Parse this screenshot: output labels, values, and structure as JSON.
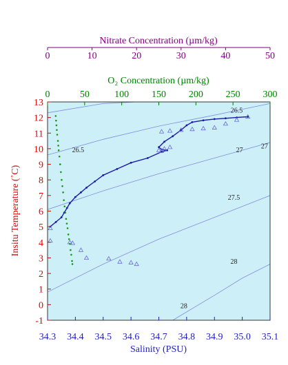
{
  "chart_data": {
    "type": "scatter",
    "axes": {
      "x_bottom": {
        "label": "Salinity (PSU)",
        "range": [
          34.3,
          35.1
        ],
        "ticks": [
          "34.3",
          "34.4",
          "34.5",
          "34.6",
          "34.7",
          "34.8",
          "34.9",
          "35.0",
          "35.1"
        ],
        "color": "#1f1fbf"
      },
      "y_left": {
        "label": "Insitu Temperature (˚C)",
        "range": [
          -1,
          13
        ],
        "ticks": [
          "-1",
          "0",
          "1",
          "2",
          "3",
          "4",
          "5",
          "6",
          "7",
          "8",
          "9",
          "10",
          "11",
          "12",
          "13"
        ],
        "color": "#e00000"
      },
      "x_top_o2": {
        "label": "O₂ Concentration (µm/kg)",
        "range": [
          0,
          300
        ],
        "ticks": [
          "0",
          "50",
          "100",
          "150",
          "200",
          "250",
          "300"
        ],
        "color": "#008000"
      },
      "x_top_nitrate": {
        "label": "Nitrate Concentration (µm/kg)",
        "range": [
          0,
          50
        ],
        "ticks": [
          "0",
          "10",
          "20",
          "30",
          "40",
          "50"
        ],
        "color": "#800080"
      }
    },
    "isopycnals": [
      {
        "label": "26.5",
        "points": [
          [
            34.3,
            9.6
          ],
          [
            34.5,
            10.6
          ],
          [
            34.7,
            11.45
          ],
          [
            34.9,
            12.15
          ],
          [
            35.1,
            12.9
          ]
        ]
      },
      {
        "label": "27",
        "points": [
          [
            34.3,
            6.1
          ],
          [
            34.5,
            7.3
          ],
          [
            34.7,
            8.4
          ],
          [
            34.9,
            9.4
          ],
          [
            35.1,
            10.4
          ]
        ]
      },
      {
        "label": "27.5",
        "points": [
          [
            34.3,
            0.8
          ],
          [
            34.5,
            2.6
          ],
          [
            34.7,
            4.2
          ],
          [
            34.9,
            5.6
          ],
          [
            35.1,
            7.0
          ]
        ]
      },
      {
        "label": "28",
        "points": [
          [
            34.75,
            -1.0
          ],
          [
            34.9,
            0.6
          ],
          [
            35.0,
            1.7
          ],
          [
            35.1,
            2.6
          ]
        ]
      },
      {
        "label": "",
        "points": [
          [
            34.3,
            12.3
          ],
          [
            34.5,
            12.9
          ],
          [
            34.62,
            13.0
          ]
        ]
      }
    ],
    "isopycnal_labels": [
      {
        "text": "26.5",
        "x": 34.41,
        "y": 9.95
      },
      {
        "text": "26.5",
        "x": 34.98,
        "y": 12.5
      },
      {
        "text": "27",
        "x": 34.99,
        "y": 9.95
      },
      {
        "text": "27",
        "x": 35.08,
        "y": 10.2
      },
      {
        "text": "27.5",
        "x": 34.97,
        "y": 6.9
      },
      {
        "text": "28",
        "x": 34.97,
        "y": 2.8
      },
      {
        "text": "28",
        "x": 34.79,
        "y": -0.05
      }
    ],
    "series": [
      {
        "name": "",
        "axis": "salinity",
        "style": "line-with-markers",
        "color": "#1a1aa8",
        "points": [
          [
            35.02,
            12.05
          ],
          [
            34.98,
            12.0
          ],
          [
            34.94,
            11.95
          ],
          [
            34.9,
            11.9
          ],
          [
            34.86,
            11.82
          ],
          [
            34.82,
            11.7
          ],
          [
            34.8,
            11.5
          ],
          [
            34.78,
            11.2
          ],
          [
            34.75,
            10.8
          ],
          [
            34.72,
            10.45
          ],
          [
            34.7,
            10.1
          ],
          [
            34.71,
            9.95
          ],
          [
            34.73,
            9.9
          ],
          [
            34.71,
            9.8
          ],
          [
            34.66,
            9.4
          ],
          [
            34.6,
            9.1
          ],
          [
            34.55,
            8.7
          ],
          [
            34.5,
            8.3
          ],
          [
            34.47,
            7.9
          ],
          [
            34.44,
            7.5
          ],
          [
            34.42,
            7.2
          ],
          [
            34.4,
            6.9
          ],
          [
            34.38,
            6.5
          ],
          [
            34.37,
            6.2
          ],
          [
            34.36,
            5.9
          ],
          [
            34.35,
            5.6
          ],
          [
            34.33,
            5.3
          ],
          [
            34.31,
            5.0
          ]
        ]
      },
      {
        "name": "",
        "axis": "salinity",
        "style": "markers",
        "marker": "triangle",
        "color": "#6a6ad8",
        "points": [
          [
            34.71,
            11.1
          ],
          [
            34.74,
            11.15
          ],
          [
            34.78,
            11.2
          ],
          [
            34.82,
            11.25
          ],
          [
            34.86,
            11.3
          ],
          [
            34.9,
            11.35
          ],
          [
            34.94,
            11.6
          ],
          [
            34.98,
            11.85
          ],
          [
            35.02,
            12.05
          ],
          [
            34.71,
            9.85
          ],
          [
            34.72,
            10.0
          ],
          [
            34.74,
            10.1
          ],
          [
            34.7,
            9.9
          ],
          [
            34.31,
            4.9
          ],
          [
            34.31,
            4.1
          ],
          [
            34.38,
            4.0
          ],
          [
            34.39,
            3.95
          ],
          [
            34.42,
            3.5
          ],
          [
            34.44,
            3.0
          ],
          [
            34.52,
            2.95
          ],
          [
            34.56,
            2.75
          ],
          [
            34.6,
            2.7
          ],
          [
            34.62,
            2.6
          ]
        ]
      },
      {
        "name": "",
        "axis": "o2",
        "style": "markers",
        "marker": "dot",
        "color": "#139c13",
        "points": [
          [
            11,
            12.1
          ],
          [
            11.5,
            11.8
          ],
          [
            12,
            11.5
          ],
          [
            12.5,
            11.2
          ],
          [
            13,
            10.9
          ],
          [
            14,
            10.5
          ],
          [
            14.5,
            10.2
          ],
          [
            15,
            9.9
          ],
          [
            16,
            9.5
          ],
          [
            17,
            9.0
          ],
          [
            18,
            8.5
          ],
          [
            19,
            8.0
          ],
          [
            20,
            7.6
          ],
          [
            21,
            7.2
          ],
          [
            22,
            6.7
          ],
          [
            23,
            6.3
          ],
          [
            24,
            5.9
          ],
          [
            25,
            5.5
          ],
          [
            26,
            5.2
          ],
          [
            27,
            4.9
          ],
          [
            28,
            4.5
          ],
          [
            29,
            4.2
          ],
          [
            30,
            3.9
          ],
          [
            31,
            3.5
          ],
          [
            32,
            3.2
          ],
          [
            33,
            2.8
          ],
          [
            33.5,
            2.6
          ]
        ]
      }
    ],
    "grid": false,
    "legend": "none"
  }
}
